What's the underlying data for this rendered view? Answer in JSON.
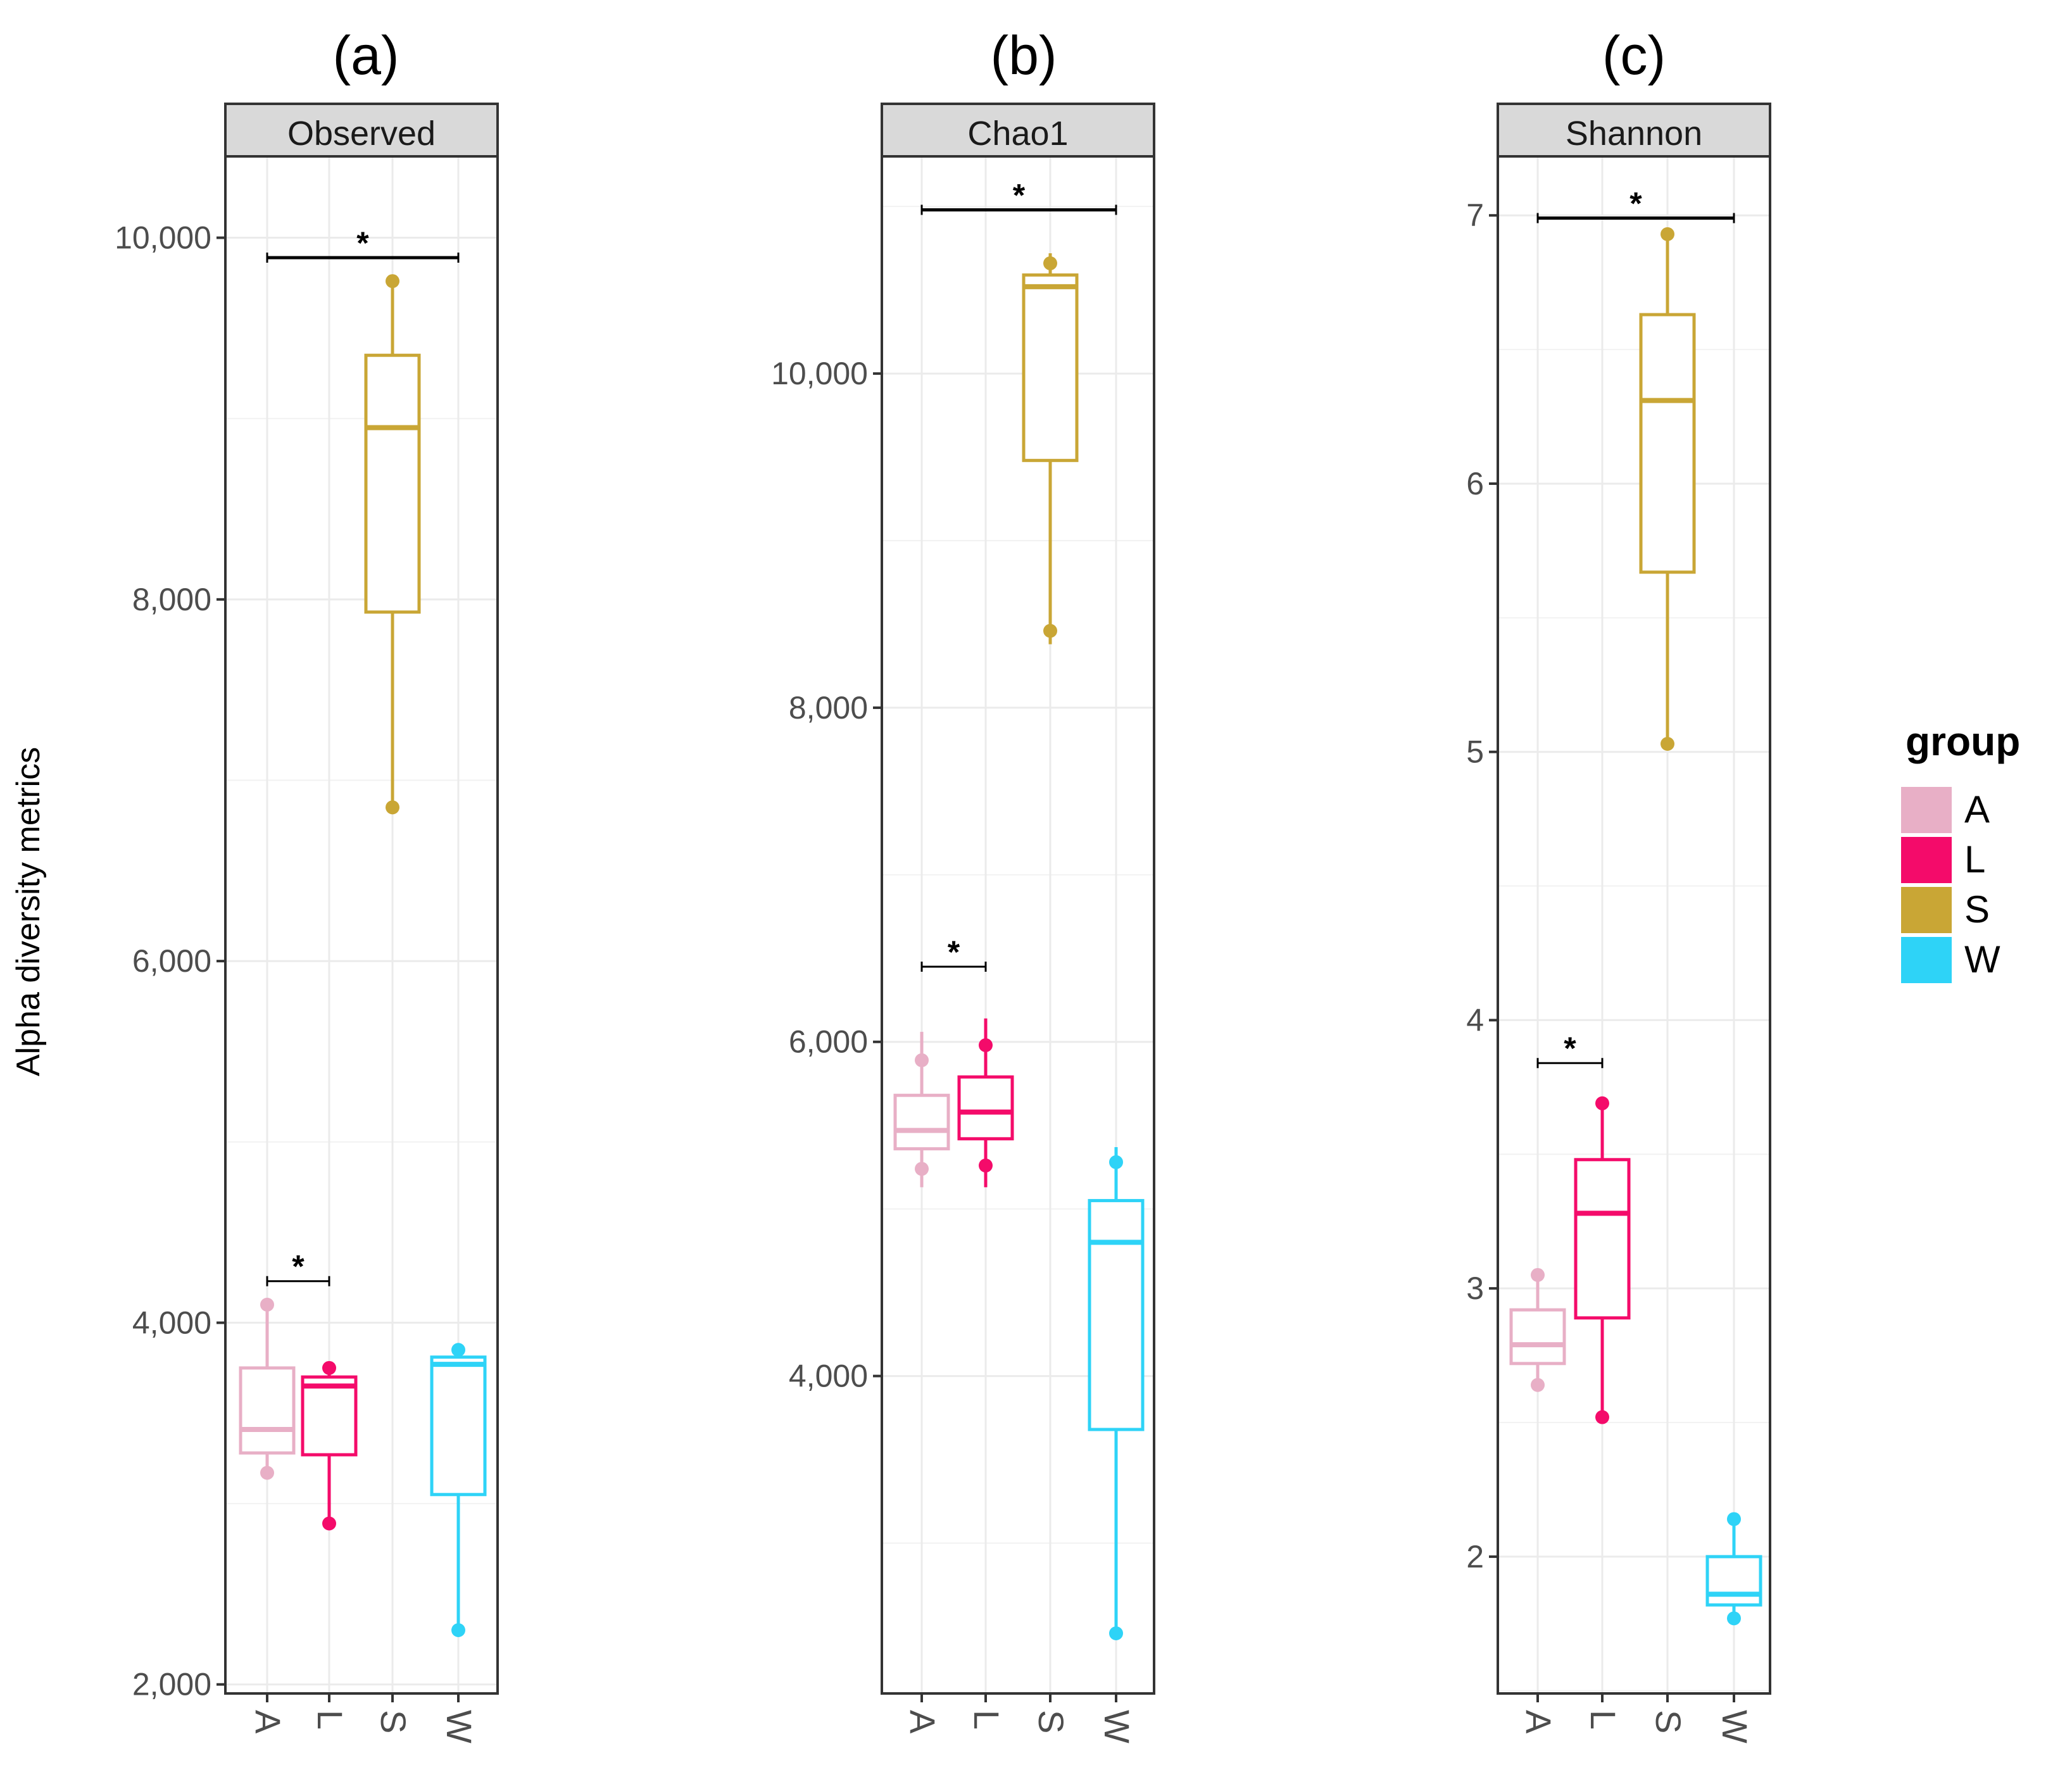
{
  "ylabel": "Alpha diversity metrics",
  "legend": {
    "title": "group",
    "items": [
      {
        "label": "A",
        "color": "#E8AFC6"
      },
      {
        "label": "L",
        "color": "#F40B6A"
      },
      {
        "label": "S",
        "color": "#C9A635"
      },
      {
        "label": "W",
        "color": "#2ED3F7"
      }
    ]
  },
  "chart_data": [
    {
      "type": "box",
      "panel_label": "(a)",
      "title": "Observed",
      "categories": [
        "A",
        "L",
        "S",
        "W"
      ],
      "ylim": [
        1950,
        10450
      ],
      "yticks": [
        2000,
        4000,
        6000,
        8000,
        10000
      ],
      "ytick_labels": [
        "2,000",
        "4,000",
        "6,000",
        "8,000",
        "10,000"
      ],
      "boxes": [
        {
          "group": "A",
          "low": 3170,
          "q1": 3280,
          "median": 3410,
          "q3": 3750,
          "high": 4100,
          "points": [
            4100,
            3170
          ]
        },
        {
          "group": "L",
          "low": 2890,
          "q1": 3270,
          "median": 3650,
          "q3": 3700,
          "high": 3750,
          "points": [
            3750,
            2890
          ]
        },
        {
          "group": "S",
          "low": 6850,
          "q1": 7930,
          "median": 8950,
          "q3": 9350,
          "high": 9760,
          "points": [
            9760,
            6850
          ]
        },
        {
          "group": "W",
          "low": 2300,
          "q1": 3050,
          "median": 3770,
          "q3": 3810,
          "high": 3850,
          "points": [
            3850,
            2300
          ]
        }
      ],
      "significance": [
        {
          "from": "A",
          "to": "W",
          "value": 9890,
          "label": "*"
        },
        {
          "from": "A",
          "to": "L",
          "value": 4230,
          "label": "*"
        }
      ]
    },
    {
      "type": "box",
      "panel_label": "(b)",
      "title": "Chao1",
      "categories": [
        "A",
        "L",
        "S",
        "W"
      ],
      "ylim": [
        2100,
        11300
      ],
      "yticks": [
        4000,
        6000,
        8000,
        10000
      ],
      "ytick_labels": [
        "4,000",
        "6,000",
        "8,000",
        "10,000"
      ],
      "boxes": [
        {
          "group": "A",
          "low": 5130,
          "q1": 5360,
          "median": 5470,
          "q3": 5680,
          "high": 6060,
          "points": [
            5890,
            5240
          ]
        },
        {
          "group": "L",
          "low": 5130,
          "q1": 5420,
          "median": 5580,
          "q3": 5790,
          "high": 6140,
          "points": [
            5980,
            5260
          ]
        },
        {
          "group": "S",
          "low": 8380,
          "q1": 9480,
          "median": 10520,
          "q3": 10590,
          "high": 10720,
          "points": [
            10660,
            8460
          ]
        },
        {
          "group": "W",
          "low": 2460,
          "q1": 3680,
          "median": 4800,
          "q3": 5050,
          "high": 5370,
          "points": [
            5280,
            2460
          ]
        }
      ],
      "significance": [
        {
          "from": "A",
          "to": "W",
          "value": 10980,
          "label": "*"
        },
        {
          "from": "A",
          "to": "L",
          "value": 6450,
          "label": "*"
        }
      ]
    },
    {
      "type": "box",
      "panel_label": "(c)",
      "title": "Shannon",
      "categories": [
        "A",
        "L",
        "S",
        "W"
      ],
      "ylim": [
        1.49,
        7.22
      ],
      "yticks": [
        2,
        3,
        4,
        5,
        6,
        7
      ],
      "ytick_labels": [
        "2",
        "3",
        "4",
        "5",
        "6",
        "7"
      ],
      "boxes": [
        {
          "group": "A",
          "low": 2.64,
          "q1": 2.72,
          "median": 2.79,
          "q3": 2.92,
          "high": 3.05,
          "points": [
            3.05,
            2.64
          ]
        },
        {
          "group": "L",
          "low": 2.52,
          "q1": 2.89,
          "median": 3.28,
          "q3": 3.48,
          "high": 3.69,
          "points": [
            3.69,
            2.52
          ]
        },
        {
          "group": "S",
          "low": 5.03,
          "q1": 5.67,
          "median": 6.31,
          "q3": 6.63,
          "high": 6.93,
          "points": [
            6.93,
            5.03
          ]
        },
        {
          "group": "W",
          "low": 1.77,
          "q1": 1.82,
          "median": 1.86,
          "q3": 2.0,
          "high": 2.14,
          "points": [
            2.14,
            1.77
          ]
        }
      ],
      "significance": [
        {
          "from": "A",
          "to": "W",
          "value": 6.99,
          "label": "*"
        },
        {
          "from": "A",
          "to": "L",
          "value": 3.84,
          "label": "*"
        }
      ]
    }
  ]
}
